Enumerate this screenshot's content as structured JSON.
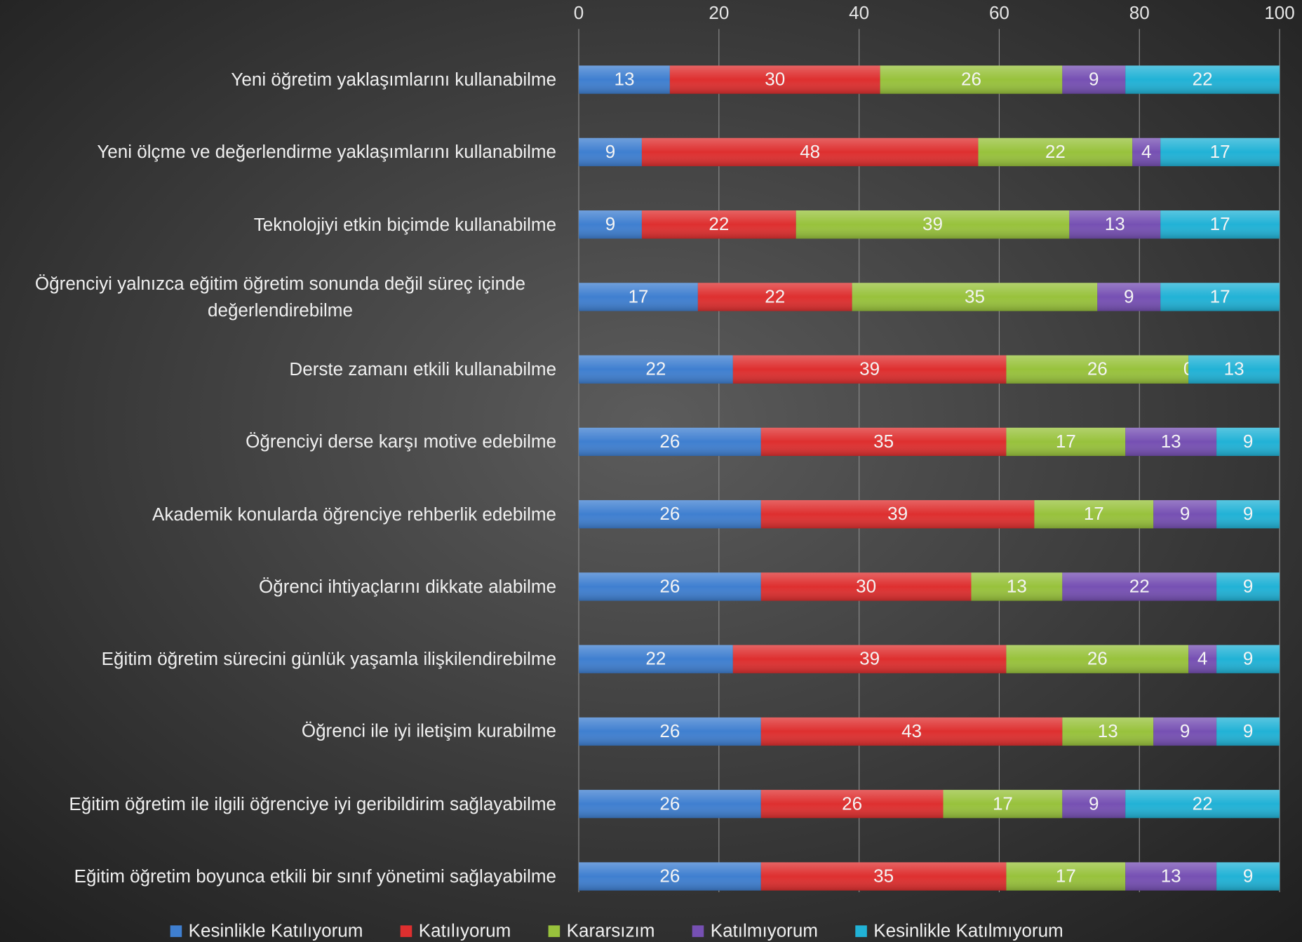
{
  "chart_data": {
    "type": "stacked-barh",
    "categories": [
      "Yeni öğretim yaklaşımlarını kullanabilme",
      "Yeni ölçme ve değerlendirme yaklaşımlarını kullanabilme",
      "Teknolojiyi etkin  biçimde kullanabilme",
      "Öğrenciyi yalnızca eğitim öğretim sonunda değil süreç içinde değerlendirebilme",
      "Derste zamanı etkili kullanabilme",
      "Öğrenciyi derse karşı motive edebilme",
      "Akademik konularda öğrenciye rehberlik edebilme",
      "Öğrenci ihtiyaçlarını dikkate alabilme",
      "Eğitim öğretim sürecini günlük yaşamla ilişkilendirebilme",
      "Öğrenci ile iyi iletişim kurabilme",
      "Eğitim öğretim ile ilgili öğrenciye iyi geribildirim sağlayabilme",
      "Eğitim öğretim boyunca etkili bir sınıf yönetimi sağlayabilme"
    ],
    "series": [
      {
        "name": "Kesinlikle Katılıyorum",
        "color": "#3f7fd0",
        "values": [
          13,
          9,
          9,
          17,
          22,
          26,
          26,
          26,
          22,
          26,
          26,
          26
        ]
      },
      {
        "name": "Katılıyorum",
        "color": "#de2f2f",
        "values": [
          30,
          48,
          22,
          22,
          39,
          35,
          39,
          30,
          39,
          43,
          26,
          35
        ]
      },
      {
        "name": "Kararsızım",
        "color": "#98c23c",
        "values": [
          26,
          22,
          39,
          35,
          26,
          17,
          17,
          13,
          26,
          13,
          17,
          17
        ]
      },
      {
        "name": "Katılmıyorum",
        "color": "#7650b3",
        "values": [
          9,
          4,
          13,
          9,
          0,
          13,
          9,
          22,
          4,
          9,
          9,
          13
        ]
      },
      {
        "name": "Kesinlikle Katılmıyorum",
        "color": "#21b2d6",
        "values": [
          22,
          17,
          17,
          17,
          13,
          9,
          9,
          9,
          9,
          9,
          22,
          9
        ]
      }
    ],
    "xlim": [
      0,
      100
    ],
    "xticks": [
      0,
      20,
      40,
      60,
      80,
      100
    ],
    "grid": true,
    "legend": "bottom"
  }
}
